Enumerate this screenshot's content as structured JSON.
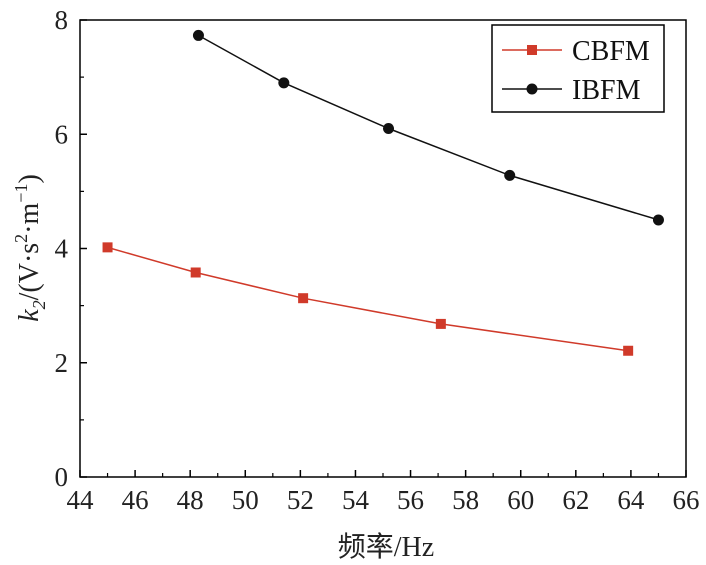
{
  "chart_data": {
    "type": "line",
    "title": "",
    "xlabel": "频率/Hz",
    "ylabel": "k2/(V·s2·m−1)",
    "ylabel_parts": {
      "k": "k",
      "k_sub": "2",
      "open": "/(V·s",
      "s_sup": "2",
      "mid": "·m",
      "m_sup": "−1",
      "close": ")"
    },
    "xlim": [
      44,
      66
    ],
    "ylim": [
      0,
      8
    ],
    "xticks": [
      44,
      46,
      48,
      50,
      52,
      54,
      56,
      58,
      60,
      62,
      64,
      66
    ],
    "yticks": [
      0,
      2,
      4,
      6,
      8
    ],
    "grid": false,
    "legend_position": "top-right",
    "series": [
      {
        "name": "CBFM",
        "color": "#d03a2a",
        "marker": "square",
        "x": [
          45.0,
          48.2,
          52.1,
          57.1,
          63.9
        ],
        "y": [
          4.02,
          3.58,
          3.13,
          2.68,
          2.21
        ]
      },
      {
        "name": "IBFM",
        "color": "#111111",
        "marker": "circle",
        "x": [
          48.3,
          51.4,
          55.2,
          59.6,
          65.0
        ],
        "y": [
          7.73,
          6.9,
          6.1,
          5.28,
          4.5
        ]
      }
    ]
  }
}
